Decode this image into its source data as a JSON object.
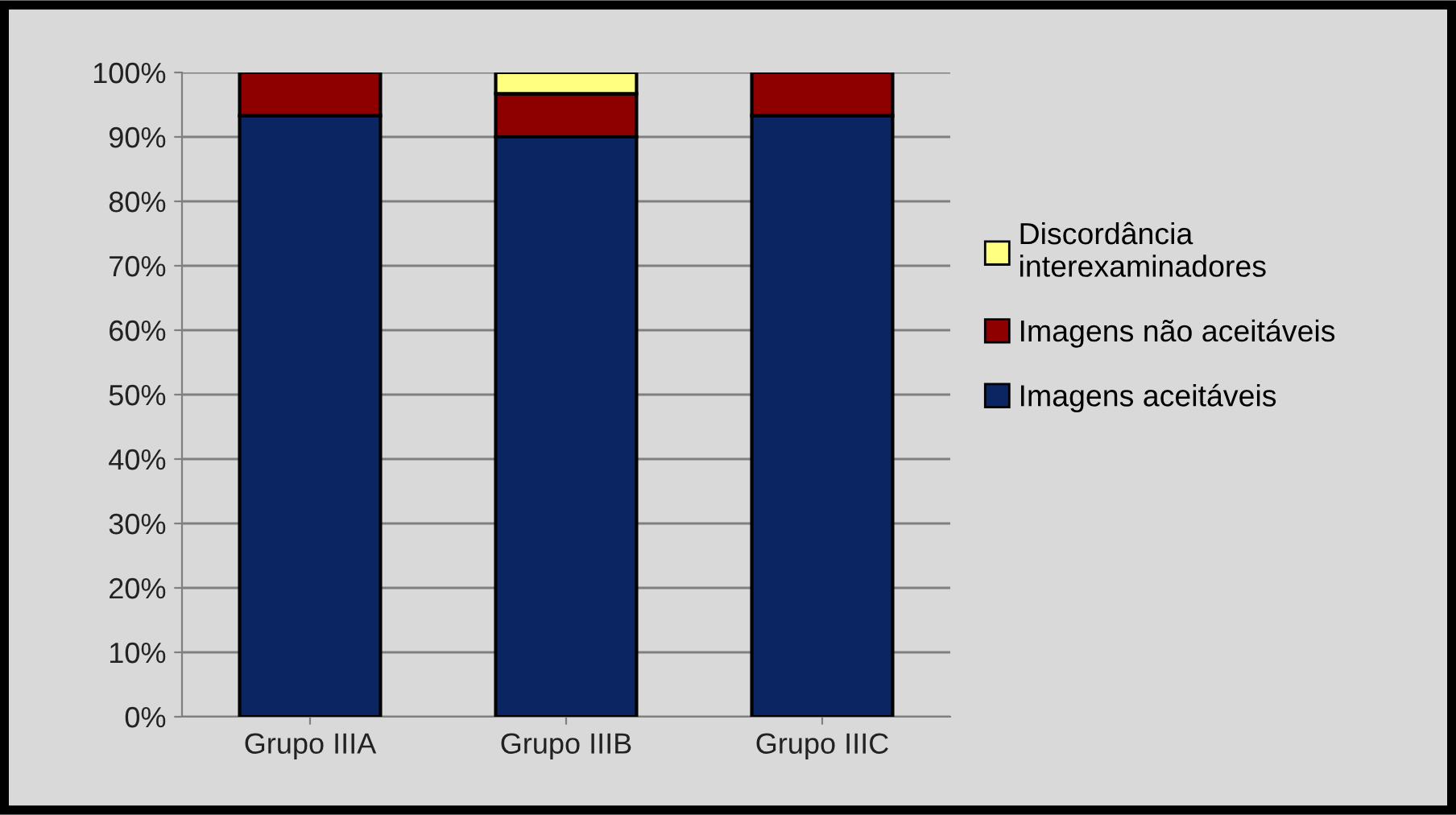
{
  "chart_data": {
    "type": "bar",
    "stacked": true,
    "categories": [
      "Grupo IIIA",
      "Grupo IIIB",
      "Grupo IIIC"
    ],
    "series": [
      {
        "name": "Imagens aceitáveis",
        "color": "#0b2462",
        "values": [
          93.3,
          90,
          93.3
        ]
      },
      {
        "name": "Imagens não aceitáveis",
        "color": "#8e0000",
        "values": [
          6.7,
          6.7,
          6.7
        ]
      },
      {
        "name": "Discordância interexaminadores",
        "color": "#ffff80",
        "values": [
          null,
          3.3,
          null
        ]
      }
    ],
    "ylim": [
      0,
      100
    ],
    "yticks": [
      {
        "value": 0,
        "label": "0%"
      },
      {
        "value": 10,
        "label": "10%"
      },
      {
        "value": 20,
        "label": "20%"
      },
      {
        "value": 30,
        "label": "30%"
      },
      {
        "value": 40,
        "label": "40%"
      },
      {
        "value": 50,
        "label": "50%"
      },
      {
        "value": 60,
        "label": "60%"
      },
      {
        "value": 70,
        "label": "70%"
      },
      {
        "value": 80,
        "label": "80%"
      },
      {
        "value": 90,
        "label": "90%"
      },
      {
        "value": 100,
        "label": "100%"
      }
    ],
    "grid": "y",
    "legend": "right"
  }
}
